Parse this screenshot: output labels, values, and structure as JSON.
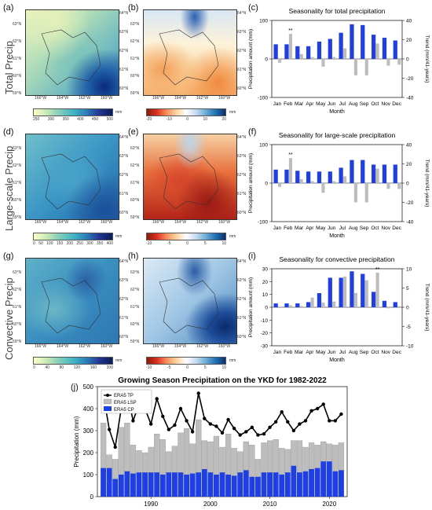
{
  "panels": {
    "a": "(a)",
    "b": "(b)",
    "c": "(c)",
    "d": "(d)",
    "e": "(e)",
    "f": "(f)",
    "g": "(g)",
    "h": "(h)",
    "i": "(i)",
    "j": "(j)"
  },
  "rows": {
    "total": "Total Precip",
    "large": "Large-scale Precip",
    "conv": "Convective Precip"
  },
  "map_axes": {
    "lon": [
      "166°W",
      "164°W",
      "162°W",
      "160°W"
    ],
    "lat_left": [
      "63°N",
      "62°N",
      "61°N",
      "60°N",
      "59°N"
    ],
    "lat_right": [
      "64°N",
      "63°N",
      "62°N",
      "61°N",
      "60°N"
    ]
  },
  "colorbars": {
    "a": {
      "ticks": [
        "250",
        "300",
        "350",
        "400",
        "450",
        "500"
      ],
      "unit": "mm"
    },
    "b": {
      "ticks": [
        "-20",
        "-10",
        "0",
        "10",
        "20"
      ],
      "unit": "mm"
    },
    "d": {
      "ticks": [
        "0",
        "50",
        "100",
        "150",
        "200",
        "250",
        "300",
        "350",
        "400"
      ],
      "unit": "mm"
    },
    "e": {
      "ticks": [
        "-10",
        "-5",
        "0",
        "5",
        "10"
      ],
      "unit": "mm"
    },
    "g": {
      "ticks": [
        "0",
        "40",
        "80",
        "120",
        "160",
        "200"
      ],
      "unit": "mm"
    },
    "h": {
      "ticks": [
        "-10",
        "-5",
        "0",
        "5",
        "10"
      ],
      "unit": "mm"
    }
  },
  "colors": {
    "blue": "#1f3fe0",
    "gray": "#bdbdbd",
    "line": "#000000"
  },
  "chart_data": [
    {
      "id": "c",
      "type": "bar",
      "title": "Seasonality for total precipitation",
      "xlabel": "Month",
      "ylabel": "Precipitation amount (mm)",
      "ylabel_right": "Trend (mm/41-years)",
      "categories": [
        "Jan",
        "Feb",
        "Mar",
        "Apr",
        "May",
        "Jun",
        "Jul",
        "Aug",
        "Sep",
        "Oct",
        "Nov",
        "Dec"
      ],
      "ylim": [
        -100,
        100
      ],
      "yticks": [
        "-100",
        "0",
        "100"
      ],
      "y2lim": [
        -40,
        40
      ],
      "y2ticks": [
        "-40",
        "-20",
        "0",
        "20",
        "40"
      ],
      "series": [
        {
          "values": [
            38,
            38,
            33,
            33,
            45,
            52,
            68,
            90,
            88,
            63,
            55,
            48
          ]
        },
        {
          "axis": "right",
          "values": [
            -4,
            26,
            5,
            2,
            -8,
            2,
            11,
            -17,
            -17,
            16,
            -7,
            -6
          ]
        }
      ],
      "annotations": [
        {
          "text": "**",
          "category": "Feb"
        }
      ]
    },
    {
      "id": "f",
      "type": "bar",
      "title": "Seasonality for large-scale precipitation",
      "xlabel": "Month",
      "ylabel": "Precipitation amount (mm)",
      "ylabel_right": "Trend (mm/41-years)",
      "categories": [
        "Jan",
        "Feb",
        "Mar",
        "Apr",
        "May",
        "Jun",
        "Jul",
        "Aug",
        "Sep",
        "Oct",
        "Nov",
        "Dec"
      ],
      "ylim": [
        -100,
        100
      ],
      "yticks": [
        "-100",
        "0",
        "100"
      ],
      "y2lim": [
        -40,
        40
      ],
      "y2ticks": [
        "-40",
        "-20",
        "0",
        "20",
        "40"
      ],
      "series": [
        {
          "values": [
            35,
            35,
            32,
            30,
            30,
            30,
            40,
            60,
            60,
            48,
            48,
            48
          ]
        },
        {
          "axis": "right",
          "values": [
            -4,
            26,
            4,
            2,
            -10,
            2,
            7,
            -20,
            -20,
            15,
            -6,
            -6
          ]
        }
      ],
      "annotations": [
        {
          "text": "**",
          "category": "Feb"
        }
      ]
    },
    {
      "id": "i",
      "type": "bar",
      "title": "Seasonality for convective precipitation",
      "xlabel": "Month",
      "ylabel": "Precipitation amount (mm)",
      "ylabel_right": "Trend (mm/41-years)",
      "categories": [
        "Jan",
        "Feb",
        "Mar",
        "Apr",
        "May",
        "Jun",
        "Jul",
        "Aug",
        "Sep",
        "Oct",
        "Nov",
        "Dec"
      ],
      "ylim": [
        -30,
        30
      ],
      "yticks": [
        "-30",
        "-20",
        "-10",
        "0",
        "10",
        "20",
        "30"
      ],
      "y2lim": [
        -10,
        10
      ],
      "y2ticks": [
        "-10",
        "-5",
        "0",
        "5",
        "10"
      ],
      "series": [
        {
          "values": [
            3,
            3,
            3,
            4,
            11,
            23,
            23,
            28,
            26,
            12,
            5,
            4
          ]
        },
        {
          "axis": "right",
          "values": [
            0,
            0.5,
            0.3,
            2.5,
            1.2,
            1.5,
            8,
            3.7,
            7,
            9,
            -0.3,
            0.3
          ]
        }
      ],
      "annotations": [
        {
          "text": "**",
          "category": "Oct"
        }
      ]
    },
    {
      "id": "j",
      "type": "bar",
      "title": "Growing Season Precipitation on the YKD for 1982-2022",
      "xlabel": "",
      "ylabel": "Precipitation (mm)",
      "ylim": [
        0,
        500
      ],
      "yticks": [
        "0",
        "100",
        "200",
        "300",
        "400",
        "500"
      ],
      "xticks": [
        "1990",
        "2000",
        "2010",
        "2020"
      ],
      "x": [
        1982,
        1983,
        1984,
        1985,
        1986,
        1987,
        1988,
        1989,
        1990,
        1991,
        1992,
        1993,
        1994,
        1995,
        1996,
        1997,
        1998,
        1999,
        2000,
        2001,
        2002,
        2003,
        2004,
        2005,
        2006,
        2007,
        2008,
        2009,
        2010,
        2011,
        2012,
        2013,
        2014,
        2015,
        2016,
        2017,
        2018,
        2019,
        2020,
        2021,
        2022
      ],
      "series": [
        {
          "name": "ERA5 TP",
          "type": "line",
          "values": [
            465,
            305,
            225,
            400,
            475,
            345,
            420,
            400,
            330,
            445,
            365,
            305,
            325,
            400,
            345,
            295,
            470,
            355,
            330,
            320,
            290,
            350,
            310,
            280,
            295,
            315,
            280,
            285,
            315,
            340,
            385,
            340,
            300,
            330,
            345,
            390,
            400,
            420,
            345,
            345,
            375
          ]
        },
        {
          "name": "ERA5 LSP",
          "values": [
            205,
            60,
            90,
            215,
            220,
            130,
            100,
            90,
            115,
            175,
            160,
            95,
            120,
            180,
            210,
            135,
            240,
            130,
            140,
            175,
            115,
            185,
            125,
            95,
            130,
            145,
            80,
            135,
            145,
            150,
            120,
            105,
            115,
            145,
            110,
            120,
            105,
            90,
            80,
            120,
            125
          ]
        },
        {
          "name": "ERA5 CP",
          "values": [
            130,
            130,
            80,
            100,
            115,
            105,
            110,
            110,
            110,
            110,
            100,
            110,
            110,
            110,
            100,
            105,
            110,
            125,
            110,
            100,
            110,
            100,
            95,
            110,
            120,
            90,
            90,
            110,
            110,
            110,
            100,
            110,
            140,
            110,
            115,
            125,
            130,
            160,
            160,
            115,
            120
          ]
        }
      ]
    }
  ]
}
